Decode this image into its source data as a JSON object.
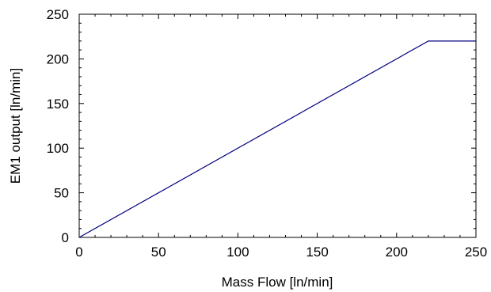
{
  "chart_data": {
    "type": "line",
    "title": "",
    "xlabel": "Mass Flow [ln/min]",
    "ylabel": "EM1 output [ln/min]",
    "xlim": [
      0,
      250
    ],
    "ylim": [
      0,
      250
    ],
    "x_ticks": [
      "0",
      "50",
      "100",
      "150",
      "200",
      "250"
    ],
    "y_ticks": [
      "0",
      "50",
      "100",
      "150",
      "200",
      "250"
    ],
    "grid": false,
    "legend": "none",
    "series": [
      {
        "color": "#000080",
        "x": [
          0,
          220,
          250
        ],
        "y": [
          0,
          220,
          220
        ]
      }
    ]
  }
}
